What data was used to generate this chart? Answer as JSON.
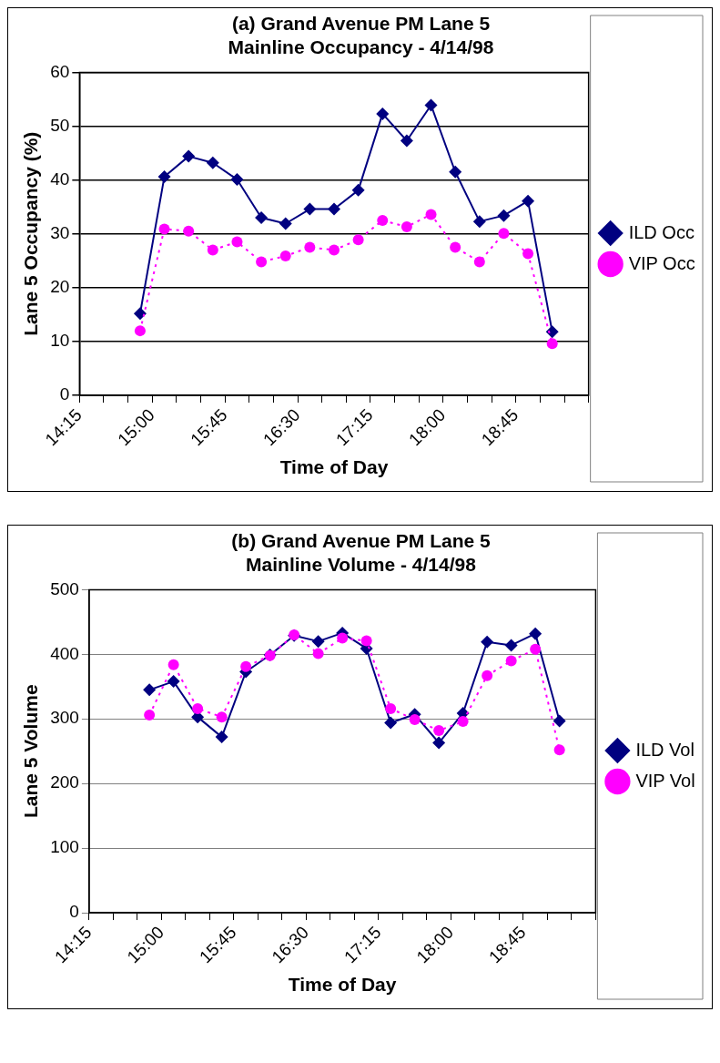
{
  "chart_data": [
    {
      "type": "line",
      "title": [
        "(a) Grand Avenue PM Lane 5",
        "Mainline Occupancy - 4/14/98"
      ],
      "xlabel": "Time of Day",
      "ylabel": "Lane 5 Occupancy (%)",
      "x": [
        14.875,
        15.125,
        15.375,
        15.625,
        15.875,
        16.125,
        16.375,
        16.625,
        16.875,
        17.125,
        17.375,
        17.625,
        17.875,
        18.125,
        18.375,
        18.625,
        18.875,
        19.125
      ],
      "xlim": [
        14.25,
        19.5
      ],
      "xticks": [
        {
          "value": 14.25,
          "label": "14:15"
        },
        {
          "value": 14.5,
          "label": null
        },
        {
          "value": 14.75,
          "label": null
        },
        {
          "value": 15,
          "label": "15:00"
        },
        {
          "value": 15.25,
          "label": null
        },
        {
          "value": 15.5,
          "label": null
        },
        {
          "value": 15.75,
          "label": "15:45"
        },
        {
          "value": 16,
          "label": null
        },
        {
          "value": 16.25,
          "label": null
        },
        {
          "value": 16.5,
          "label": "16:30"
        },
        {
          "value": 16.75,
          "label": null
        },
        {
          "value": 17,
          "label": null
        },
        {
          "value": 17.25,
          "label": "17:15"
        },
        {
          "value": 17.5,
          "label": null
        },
        {
          "value": 17.75,
          "label": null
        },
        {
          "value": 18,
          "label": "18:00"
        },
        {
          "value": 18.25,
          "label": null
        },
        {
          "value": 18.5,
          "label": null
        },
        {
          "value": 18.75,
          "label": "18:45"
        },
        {
          "value": 19,
          "label": null
        },
        {
          "value": 19.25,
          "label": null
        },
        {
          "value": 19.5,
          "label": null
        }
      ],
      "ylim": [
        0,
        60
      ],
      "yticks": [
        0,
        10,
        20,
        30,
        40,
        50,
        60
      ],
      "grid": "y",
      "legend": "right",
      "series": [
        {
          "name": "ILD Occ",
          "color": "#000080",
          "marker": "diamond",
          "line_style": "solid",
          "values": [
            15.2,
            40.6,
            44.4,
            43.2,
            40.1,
            33.0,
            31.9,
            34.6,
            34.6,
            38.1,
            52.3,
            47.3,
            53.9,
            41.5,
            32.3,
            33.4,
            36.1,
            11.8
          ]
        },
        {
          "name": "VIP Occ",
          "color": "#ff00ff",
          "marker": "circle",
          "line_style": "dotted",
          "values": [
            12.0,
            30.9,
            30.5,
            27.0,
            28.5,
            24.8,
            25.9,
            27.5,
            27.0,
            28.9,
            32.5,
            31.3,
            33.6,
            27.5,
            24.8,
            30.1,
            26.3,
            9.6
          ]
        }
      ]
    },
    {
      "type": "line",
      "title": [
        "(b) Grand Avenue PM Lane 5",
        "Mainline Volume - 4/14/98"
      ],
      "xlabel": "Time of Day",
      "ylabel": "Lane 5 Volume",
      "x": [
        14.875,
        15.125,
        15.375,
        15.625,
        15.875,
        16.125,
        16.375,
        16.625,
        16.875,
        17.125,
        17.375,
        17.625,
        17.875,
        18.125,
        18.375,
        18.625,
        18.875,
        19.125
      ],
      "xlim": [
        14.25,
        19.5
      ],
      "xticks": [
        {
          "value": 14.25,
          "label": "14:15"
        },
        {
          "value": 14.5,
          "label": null
        },
        {
          "value": 14.75,
          "label": null
        },
        {
          "value": 15,
          "label": "15:00"
        },
        {
          "value": 15.25,
          "label": null
        },
        {
          "value": 15.5,
          "label": null
        },
        {
          "value": 15.75,
          "label": "15:45"
        },
        {
          "value": 16,
          "label": null
        },
        {
          "value": 16.25,
          "label": null
        },
        {
          "value": 16.5,
          "label": "16:30"
        },
        {
          "value": 16.75,
          "label": null
        },
        {
          "value": 17,
          "label": null
        },
        {
          "value": 17.25,
          "label": "17:15"
        },
        {
          "value": 17.5,
          "label": null
        },
        {
          "value": 17.75,
          "label": null
        },
        {
          "value": 18,
          "label": "18:00"
        },
        {
          "value": 18.25,
          "label": null
        },
        {
          "value": 18.5,
          "label": null
        },
        {
          "value": 18.75,
          "label": "18:45"
        },
        {
          "value": 19,
          "label": null
        },
        {
          "value": 19.25,
          "label": null
        },
        {
          "value": 19.5,
          "label": null
        }
      ],
      "ylim": [
        0,
        500
      ],
      "yticks": [
        0,
        100,
        200,
        300,
        400,
        500
      ],
      "grid": "y",
      "legend": "right",
      "series": [
        {
          "name": "ILD Vol",
          "color": "#000080",
          "marker": "diamond",
          "line_style": "solid",
          "values": [
            345,
            358,
            303,
            272,
            373,
            399,
            429,
            420,
            433,
            409,
            294,
            307,
            263,
            309,
            419,
            414,
            432,
            297
          ]
        },
        {
          "name": "VIP Vol",
          "color": "#ff00ff",
          "marker": "circle",
          "line_style": "dotted",
          "values": [
            306,
            384,
            316,
            303,
            381,
            398,
            430,
            401,
            425,
            421,
            316,
            299,
            282,
            296,
            367,
            390,
            408,
            252
          ]
        }
      ]
    }
  ]
}
